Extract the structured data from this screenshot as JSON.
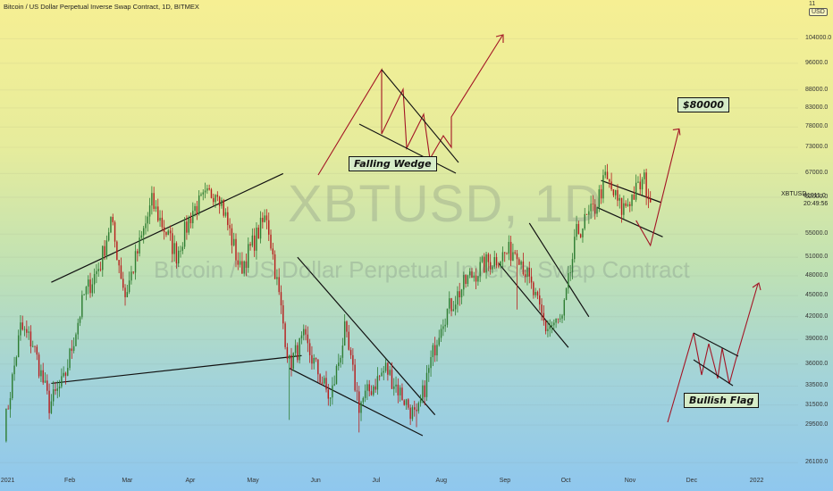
{
  "header": {
    "title": "Bitcoin / US Dollar Perpetual Inverse Swap Contract, 1D, BITMEX",
    "currency_badge": "USD"
  },
  "watermark": {
    "symbol": "XBTUSD, 1D",
    "description": "Bitcoin / US Dollar Perpetual Inverse Swap Contract"
  },
  "annotations": {
    "falling_wedge": "Falling Wedge",
    "bullish_flag": "Bullish Flag",
    "target": "$80000"
  },
  "price_scale": {
    "ticker": "XBTUSD",
    "last_price": "61011.0",
    "countdown": "20:49:56"
  },
  "chart_data": {
    "type": "candlestick",
    "title": "Bitcoin / US Dollar Perpetual Inverse Swap Contract, 1D, BITMEX",
    "y_scale": "log",
    "ylim": [
      25000,
      118000
    ],
    "yticks": [
      26100.0,
      29500.0,
      31500.0,
      33500.0,
      36000.0,
      39000.0,
      42000.0,
      45000.0,
      48000.0,
      51000.0,
      55000.0,
      62000.0,
      67000.0,
      73000.0,
      78000.0,
      83000.0,
      88000.0,
      96000.0,
      104000.0
    ],
    "ytick_labels": [
      "26100.0",
      "29500.0",
      "31500.0",
      "33500.0",
      "36000.0",
      "39000.0",
      "42000.0",
      "45000.0",
      "48000.0",
      "51000.0",
      "55000.0",
      "62000.0",
      "67000.0",
      "73000.0",
      "78000.0",
      "83000.0",
      "88000.0",
      "96000.0",
      "104000.0"
    ],
    "top_tick_partial": "11",
    "xtick_labels": [
      "2021",
      "Feb",
      "Mar",
      "Apr",
      "May",
      "Jun",
      "Jul",
      "Aug",
      "Sep",
      "Oct",
      "Nov",
      "Dec",
      "2022"
    ],
    "xlim": [
      "2020-12-29",
      "2022-01-22"
    ],
    "last_price": 61011.0,
    "price_path": [
      [
        "2020-12-31",
        29000
      ],
      [
        "2021-01-08",
        40500
      ],
      [
        "2021-01-14",
        38500
      ],
      [
        "2021-01-22",
        31500
      ],
      [
        "2021-01-29",
        34000
      ],
      [
        "2021-02-08",
        45000
      ],
      [
        "2021-02-16",
        50000
      ],
      [
        "2021-02-21",
        57500
      ],
      [
        "2021-02-28",
        45000
      ],
      [
        "2021-03-13",
        61000
      ],
      [
        "2021-03-25",
        51500
      ],
      [
        "2021-04-02",
        59500
      ],
      [
        "2021-04-14",
        64000
      ],
      [
        "2021-04-25",
        49000
      ],
      [
        "2021-05-08",
        58500
      ],
      [
        "2021-05-19",
        36000
      ],
      [
        "2021-05-26",
        39000
      ],
      [
        "2021-06-08",
        32000
      ],
      [
        "2021-06-15",
        40000
      ],
      [
        "2021-06-22",
        31500
      ],
      [
        "2021-07-05",
        35500
      ],
      [
        "2021-07-20",
        30000
      ],
      [
        "2021-08-01",
        41500
      ],
      [
        "2021-08-14",
        47500
      ],
      [
        "2021-08-23",
        50000
      ],
      [
        "2021-09-07",
        52500
      ],
      [
        "2021-09-21",
        40500
      ],
      [
        "2021-09-29",
        41500
      ],
      [
        "2021-10-06",
        55000
      ],
      [
        "2021-10-15",
        60000
      ],
      [
        "2021-10-20",
        66000
      ],
      [
        "2021-10-28",
        59500
      ],
      [
        "2021-11-08",
        65500
      ],
      [
        "2021-11-11",
        61011
      ]
    ],
    "volatility_spikes_low": [
      [
        "2021-05-19",
        30000
      ],
      [
        "2021-06-22",
        28800
      ],
      [
        "2021-07-20",
        29300
      ],
      [
        "2021-09-07",
        43000
      ]
    ],
    "trendlines": [
      {
        "from": [
          "2021-01-23",
          33800
        ],
        "to": [
          "2021-05-25",
          37000
        ]
      },
      {
        "from": [
          "2021-01-23",
          47000
        ],
        "to": [
          "2021-05-16",
          67000
        ]
      },
      {
        "from": [
          "2021-05-19",
          35500
        ],
        "to": [
          "2021-07-23",
          28500
        ]
      },
      {
        "from": [
          "2021-05-23",
          51000
        ],
        "to": [
          "2021-07-29",
          30500
        ]
      },
      {
        "from": [
          "2021-08-29",
          50000
        ],
        "to": [
          "2021-10-02",
          38000
        ]
      },
      {
        "from": [
          "2021-09-13",
          57000
        ],
        "to": [
          "2021-10-12",
          42000
        ]
      },
      {
        "from": [
          "2021-10-16",
          60000
        ],
        "to": [
          "2021-11-17",
          54500
        ]
      },
      {
        "from": [
          "2021-10-18",
          65500
        ],
        "to": [
          "2021-11-16",
          61000
        ]
      }
    ],
    "projections": [
      {
        "from": [
          "2021-11-11",
          53000
        ],
        "to": [
          "2021-11-25",
          77500
        ],
        "shape": "flag-breakout"
      }
    ]
  }
}
